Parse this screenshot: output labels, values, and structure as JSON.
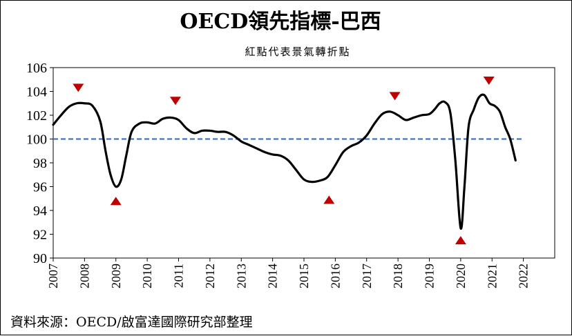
{
  "chart_data": {
    "type": "line",
    "title": "OECD領先指標-巴西",
    "subtitle": "紅點代表景氣轉折點",
    "source": "資料來源：OECD/啟富達國際研究部整理",
    "xlabel": "",
    "ylabel": "",
    "ylim": [
      90,
      106
    ],
    "yticks": [
      90,
      92,
      94,
      96,
      98,
      100,
      102,
      104,
      106
    ],
    "xlim": [
      2007,
      2023
    ],
    "xticks": [
      "2007",
      "2008",
      "2009",
      "2010",
      "2011",
      "2012",
      "2013",
      "2014",
      "2015",
      "2016",
      "2017",
      "2018",
      "2019",
      "2020",
      "2021",
      "2022"
    ],
    "grid": false,
    "reference_line": {
      "value": 100,
      "style": "dashed",
      "color": "#4472C4"
    },
    "series": [
      {
        "color": "#000000",
        "points": [
          [
            2007.0,
            101.2
          ],
          [
            2007.25,
            102.0
          ],
          [
            2007.5,
            102.7
          ],
          [
            2007.75,
            103.0
          ],
          [
            2008.0,
            103.0
          ],
          [
            2008.25,
            102.8
          ],
          [
            2008.5,
            101.5
          ],
          [
            2008.67,
            99.0
          ],
          [
            2008.83,
            97.0
          ],
          [
            2009.0,
            96.0
          ],
          [
            2009.17,
            96.6
          ],
          [
            2009.33,
            98.6
          ],
          [
            2009.5,
            100.6
          ],
          [
            2009.75,
            101.3
          ],
          [
            2010.0,
            101.4
          ],
          [
            2010.25,
            101.3
          ],
          [
            2010.5,
            101.7
          ],
          [
            2010.75,
            101.8
          ],
          [
            2011.0,
            101.6
          ],
          [
            2011.25,
            100.9
          ],
          [
            2011.5,
            100.5
          ],
          [
            2011.75,
            100.7
          ],
          [
            2012.0,
            100.7
          ],
          [
            2012.25,
            100.6
          ],
          [
            2012.5,
            100.6
          ],
          [
            2012.75,
            100.3
          ],
          [
            2013.0,
            99.8
          ],
          [
            2013.25,
            99.5
          ],
          [
            2013.5,
            99.2
          ],
          [
            2013.75,
            98.9
          ],
          [
            2014.0,
            98.7
          ],
          [
            2014.25,
            98.6
          ],
          [
            2014.5,
            98.2
          ],
          [
            2014.75,
            97.4
          ],
          [
            2015.0,
            96.6
          ],
          [
            2015.25,
            96.4
          ],
          [
            2015.5,
            96.5
          ],
          [
            2015.75,
            96.8
          ],
          [
            2016.0,
            97.8
          ],
          [
            2016.25,
            98.9
          ],
          [
            2016.5,
            99.4
          ],
          [
            2016.75,
            99.7
          ],
          [
            2017.0,
            100.3
          ],
          [
            2017.25,
            101.3
          ],
          [
            2017.5,
            102.1
          ],
          [
            2017.75,
            102.3
          ],
          [
            2018.0,
            102.0
          ],
          [
            2018.25,
            101.6
          ],
          [
            2018.5,
            101.8
          ],
          [
            2018.75,
            102.0
          ],
          [
            2019.0,
            102.1
          ],
          [
            2019.17,
            102.5
          ],
          [
            2019.33,
            103.0
          ],
          [
            2019.5,
            103.1
          ],
          [
            2019.67,
            102.2
          ],
          [
            2019.83,
            98.2
          ],
          [
            2020.0,
            92.5
          ],
          [
            2020.12,
            96.0
          ],
          [
            2020.25,
            101.0
          ],
          [
            2020.42,
            102.5
          ],
          [
            2020.58,
            103.5
          ],
          [
            2020.75,
            103.7
          ],
          [
            2020.92,
            103.0
          ],
          [
            2021.08,
            102.8
          ],
          [
            2021.25,
            102.3
          ],
          [
            2021.42,
            101.0
          ],
          [
            2021.58,
            100.0
          ],
          [
            2021.75,
            98.2
          ]
        ]
      }
    ],
    "markers": [
      {
        "x": 2007.8,
        "y": 104.3,
        "shape": "triangle-down",
        "color": "#C00000"
      },
      {
        "x": 2009.0,
        "y": 94.8,
        "shape": "triangle-up",
        "color": "#C00000"
      },
      {
        "x": 2010.9,
        "y": 103.2,
        "shape": "triangle-down",
        "color": "#C00000"
      },
      {
        "x": 2015.8,
        "y": 94.9,
        "shape": "triangle-up",
        "color": "#C00000"
      },
      {
        "x": 2017.9,
        "y": 103.6,
        "shape": "triangle-down",
        "color": "#C00000"
      },
      {
        "x": 2020.0,
        "y": 91.5,
        "shape": "triangle-up",
        "color": "#C00000"
      },
      {
        "x": 2020.9,
        "y": 104.9,
        "shape": "triangle-down",
        "color": "#C00000"
      }
    ]
  }
}
